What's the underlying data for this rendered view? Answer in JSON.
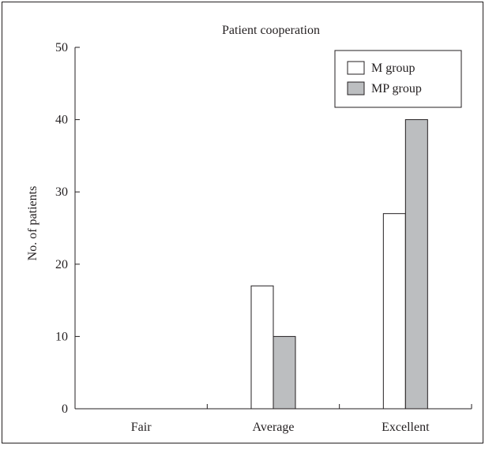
{
  "chart_data": {
    "type": "bar",
    "title": "Patient cooperation",
    "xlabel": "",
    "ylabel": "No. of patients",
    "categories": [
      "Fair",
      "Average",
      "Excellent"
    ],
    "ylim": [
      0,
      50
    ],
    "yticks": [
      0,
      10,
      20,
      30,
      40,
      50
    ],
    "grid": false,
    "legend_position": "top-right",
    "series": [
      {
        "name": "M group",
        "values": [
          0,
          17,
          27
        ],
        "color": "#ffffff"
      },
      {
        "name": "MP group",
        "values": [
          0,
          10,
          40
        ],
        "color": "#bcbec0"
      }
    ]
  }
}
